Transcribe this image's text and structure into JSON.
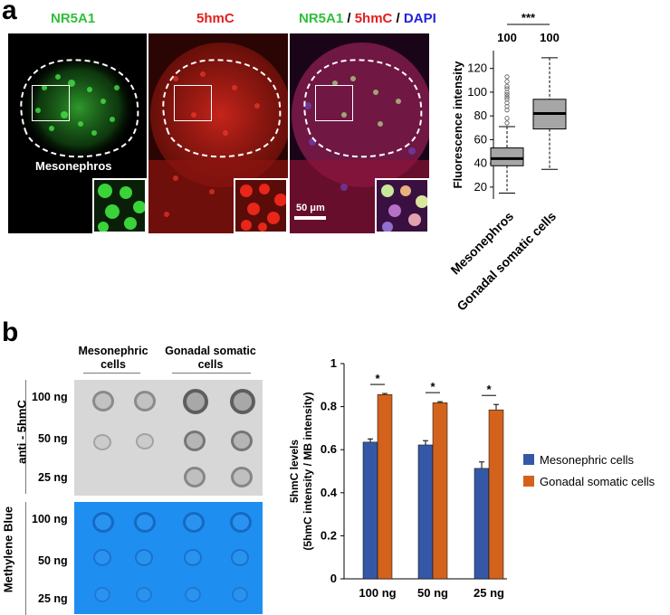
{
  "panel_a": {
    "letter": "a",
    "channels": {
      "nr5a1": "NR5A1",
      "hmc": "5hmC",
      "merge_nr5a1": "NR5A1",
      "sep1": " / ",
      "merge_hmc": "5hmC",
      "sep2": " / ",
      "merge_dapi": "DAPI"
    },
    "mesonephros_label": "Mesonephros",
    "scale_bar": "50 μm"
  },
  "panel_b": {
    "letter": "b",
    "dot_blot": {
      "col_headers": [
        "Mesonephric\ncells",
        "Gonadal somatic\ncells"
      ],
      "row_labels": [
        "100 ng",
        "50 ng",
        "25 ng"
      ],
      "section_labels": [
        "anti - 5hmC",
        "Methylene Blue"
      ]
    }
  },
  "colors": {
    "mesonephric": "#3558a6",
    "gonadal": "#d3621d",
    "box_fill": "#a6a6a6",
    "methylene": "#1e8ef0"
  },
  "chart_data": [
    {
      "type": "box",
      "ylabel": "Fluorescence intensity",
      "ylim": [
        10,
        135
      ],
      "yticks": [
        20,
        40,
        60,
        80,
        100,
        120
      ],
      "categories": [
        "Mesonephros",
        "Gonadal somatic cells"
      ],
      "n_labels": [
        "100",
        "100"
      ],
      "significance": "***",
      "boxes": [
        {
          "min": 15,
          "q1": 38,
          "median": 44,
          "q3": 53,
          "max": 71,
          "outliers": [
            74,
            78,
            85,
            88,
            91,
            94,
            96,
            98,
            100,
            103,
            105,
            109,
            113
          ]
        },
        {
          "min": 35,
          "q1": 69,
          "median": 82,
          "q3": 94,
          "max": 129,
          "outliers": []
        }
      ]
    },
    {
      "type": "bar",
      "ylabel_lines": [
        "5hmC levels",
        "(5hmC intensity / MB intensity)"
      ],
      "ylim": [
        0,
        1
      ],
      "yticks": [
        "0",
        "0.2",
        "0.4",
        "0.6",
        "0.8",
        "1"
      ],
      "categories": [
        "100 ng",
        "50 ng",
        "25 ng"
      ],
      "series": [
        {
          "name": "Mesonephric cells",
          "values": [
            0.635,
            0.622,
            0.513
          ],
          "errors": [
            0.015,
            0.02,
            0.03
          ]
        },
        {
          "name": "Gonadal somatic cells",
          "values": [
            0.856,
            0.818,
            0.785
          ],
          "errors": [
            0.005,
            0.005,
            0.025
          ]
        }
      ],
      "significance": [
        "*",
        "*",
        "*"
      ]
    }
  ]
}
